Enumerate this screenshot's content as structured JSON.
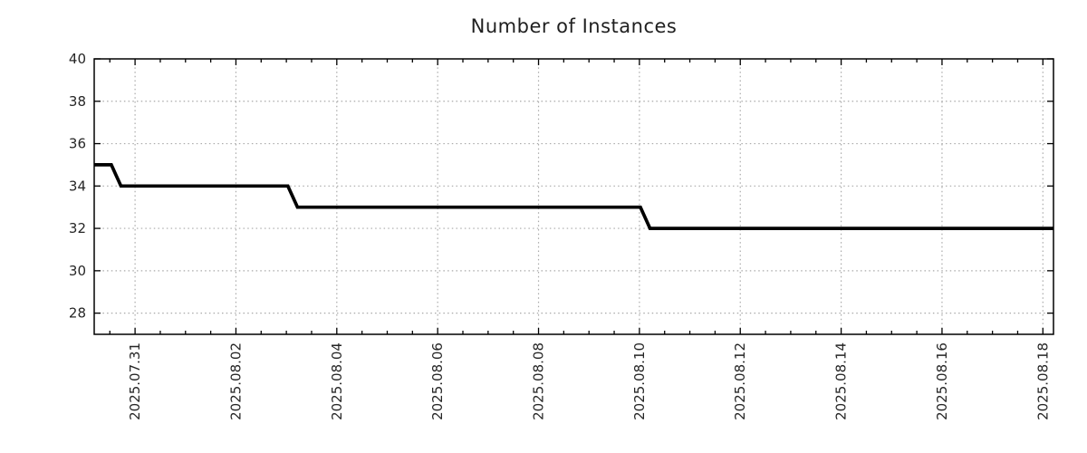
{
  "title": "Number of Instances",
  "colors": {
    "background": "#ffffff",
    "line": "#000000",
    "grid": "#a9a9a9",
    "border": "#000000",
    "tick_text": "#262626",
    "title_text": "#1f1f1f"
  },
  "chart_data": {
    "type": "line",
    "title": "Number of Instances",
    "xlabel": "",
    "ylabel": "",
    "legend": false,
    "grid": "dotted",
    "x_unit": "days since 2025.07.30 00:00",
    "xlim": [
      0.19,
      19.21
    ],
    "ylim": [
      27,
      40
    ],
    "y_ticks": [
      28,
      30,
      32,
      34,
      36,
      38,
      40
    ],
    "x_major_ticks": [
      {
        "label": "2025.07.31",
        "value": 1
      },
      {
        "label": "2025.08.02",
        "value": 3
      },
      {
        "label": "2025.08.04",
        "value": 5
      },
      {
        "label": "2025.08.06",
        "value": 7
      },
      {
        "label": "2025.08.08",
        "value": 9
      },
      {
        "label": "2025.08.10",
        "value": 11
      },
      {
        "label": "2025.08.12",
        "value": 13
      },
      {
        "label": "2025.08.14",
        "value": 15
      },
      {
        "label": "2025.08.16",
        "value": 17
      },
      {
        "label": "2025.08.18",
        "value": 19
      }
    ],
    "x_minor_tick_interval": 0.5,
    "series": [
      {
        "name": "number-of-instances",
        "color": "#000000",
        "points": [
          [
            0.19,
            35
          ],
          [
            0.53,
            35
          ],
          [
            0.72,
            34
          ],
          [
            4.03,
            34
          ],
          [
            4.22,
            33
          ],
          [
            11.02,
            33
          ],
          [
            11.21,
            32
          ],
          [
            19.21,
            32
          ]
        ]
      }
    ]
  }
}
